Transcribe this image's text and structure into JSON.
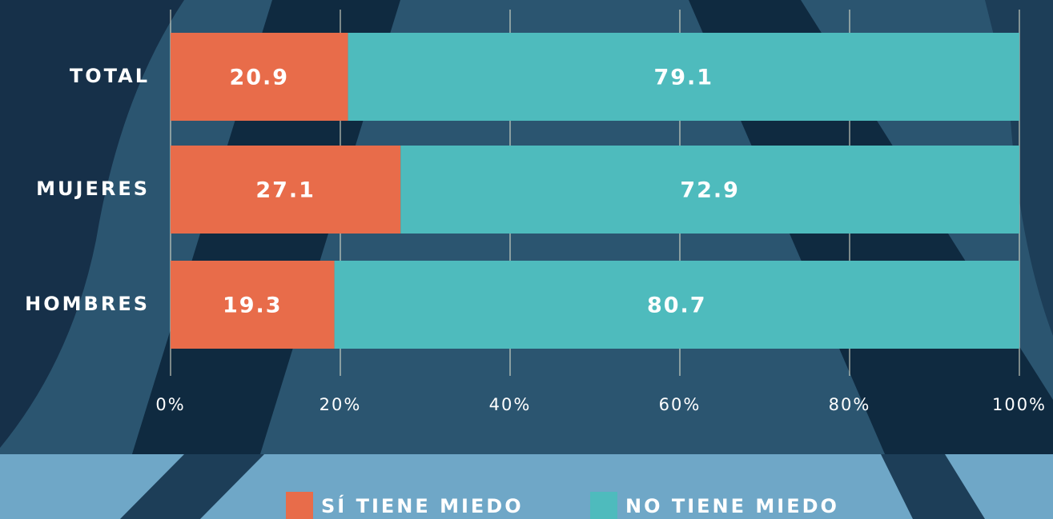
{
  "chart_data": {
    "type": "bar",
    "orientation": "horizontal",
    "stacked": true,
    "categories": [
      "TOTAL",
      "MUJERES",
      "HOMBRES"
    ],
    "series": [
      {
        "name": "SÍ TIENE MIEDO",
        "color": "#e86c4a",
        "values": [
          20.9,
          27.1,
          19.3
        ]
      },
      {
        "name": "NO TIENE MIEDO",
        "color": "#4ebbbd",
        "values": [
          79.1,
          72.9,
          80.7
        ]
      }
    ],
    "xlim": [
      0,
      100
    ],
    "xticks": [
      {
        "value": 0,
        "label": "0%"
      },
      {
        "value": 20,
        "label": "20%"
      },
      {
        "value": 40,
        "label": "40%"
      },
      {
        "value": 60,
        "label": "60%"
      },
      {
        "value": 80,
        "label": "80%"
      },
      {
        "value": 100,
        "label": "100%"
      }
    ],
    "grid": true
  }
}
